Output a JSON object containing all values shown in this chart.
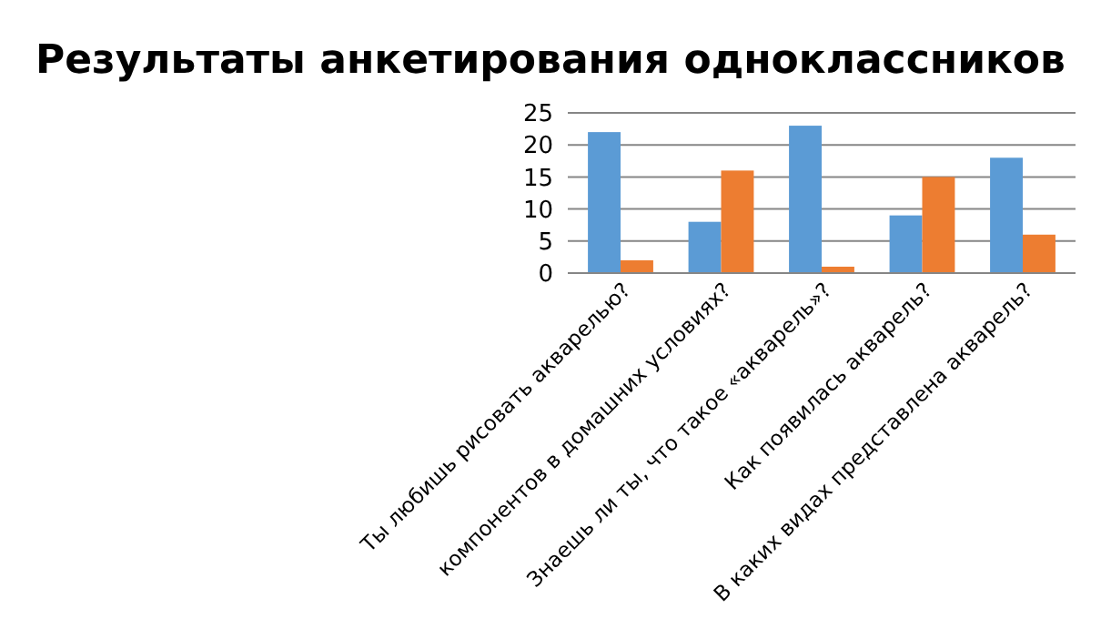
{
  "chart_data": {
    "type": "bar",
    "title": "Результаты анкетирования одноклассников",
    "categories": [
      "Ты любишь рисовать акварелью?",
      "компонентов в домашних условиях?",
      "Знаешь ли ты, что такое «акварель»?",
      "Как появилась акварель?",
      "В каких видах представлена акварель?"
    ],
    "series": [
      {
        "color": "#5b9bd5",
        "values": [
          22,
          8,
          23,
          9,
          18
        ]
      },
      {
        "color": "#ed7d31",
        "values": [
          2,
          16,
          1,
          15,
          6
        ]
      }
    ],
    "ylim": [
      0,
      25
    ],
    "yticks": [
      0,
      5,
      10,
      15,
      20,
      25
    ],
    "grid": "y"
  }
}
